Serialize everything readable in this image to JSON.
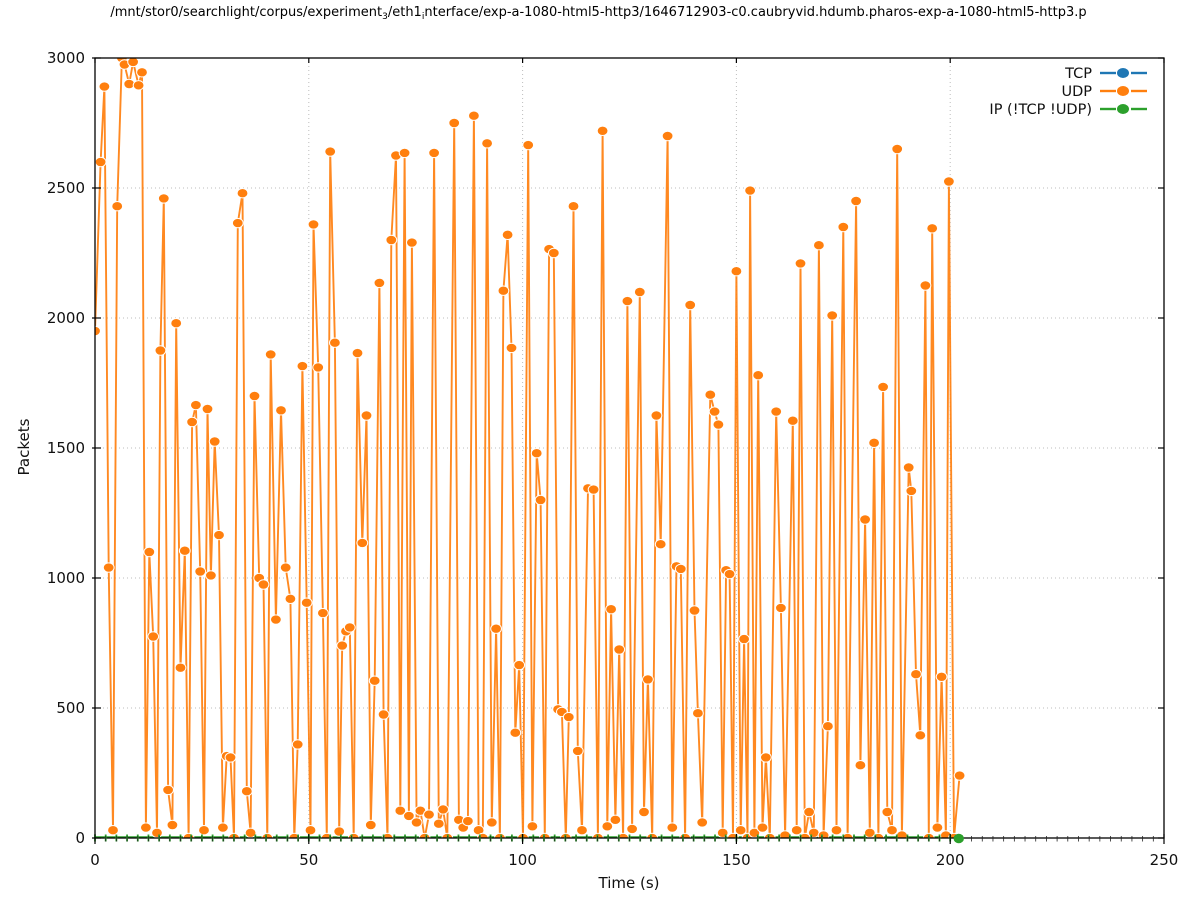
{
  "title": {
    "parts": [
      {
        "text": "/mnt/stor0/searchlight/corpus/experiment"
      },
      {
        "sub": "3"
      },
      {
        "text": "/eth1"
      },
      {
        "sub": "i"
      },
      {
        "text": "nterface/exp-a-1080-html5-http3/1646712903-c0.caubryvid.hdumb.pharos-exp-a-1080-html5-http3.p"
      }
    ]
  },
  "chart_data": {
    "type": "line",
    "title": "",
    "xlabel": "Time (s)",
    "ylabel": "Packets",
    "xlim": [
      0,
      250
    ],
    "ylim": [
      0,
      3000
    ],
    "x_ticks": [
      0,
      50,
      100,
      150,
      200,
      250
    ],
    "y_ticks": [
      0,
      500,
      1000,
      1500,
      2000,
      2500,
      3000
    ],
    "x_minor_tick_step": 2.5,
    "grid": "dotted",
    "grid_color": "#bdbdbd",
    "axis_color": "#000000",
    "legend_position": "top-right-inside",
    "legend": [
      {
        "label": "TCP",
        "color": "#1f77b4"
      },
      {
        "label": "UDP",
        "color": "#ff7f0e"
      },
      {
        "label": "IP (!TCP  !UDP)",
        "color": "#2ca02c"
      }
    ],
    "series": [
      {
        "name": "TCP",
        "color": "#1f77b4",
        "points": [],
        "note": "no visible TCP samples in plot area"
      },
      {
        "name": "UDP",
        "color": "#ff7f0e",
        "marker": "filled-circle-white-edge",
        "points": [
          [
            0,
            1950
          ],
          [
            1.3,
            2600
          ],
          [
            2.2,
            2890
          ],
          [
            3.2,
            1040
          ],
          [
            4.2,
            30
          ],
          [
            5.2,
            2430
          ],
          [
            6.3,
            3000
          ],
          [
            6.9,
            2975
          ],
          [
            8,
            2900
          ],
          [
            8.9,
            2985
          ],
          [
            10.2,
            2895
          ],
          [
            11,
            2945
          ],
          [
            11.9,
            40
          ],
          [
            12.7,
            1100
          ],
          [
            13.6,
            775
          ],
          [
            14.5,
            20
          ],
          [
            15.3,
            1875
          ],
          [
            16.1,
            2460
          ],
          [
            17.1,
            185
          ],
          [
            18.1,
            50
          ],
          [
            19,
            1980
          ],
          [
            20,
            655
          ],
          [
            21,
            1105
          ],
          [
            21.9,
            0
          ],
          [
            22.7,
            1600
          ],
          [
            23.6,
            1665
          ],
          [
            24.6,
            1025
          ],
          [
            25.5,
            30
          ],
          [
            26.3,
            1650
          ],
          [
            27.1,
            1010
          ],
          [
            28,
            1525
          ],
          [
            29,
            1165
          ],
          [
            29.9,
            40
          ],
          [
            30.8,
            315
          ],
          [
            31.7,
            310
          ],
          [
            32.5,
            0
          ],
          [
            33.4,
            2365
          ],
          [
            34.5,
            2480
          ],
          [
            35.5,
            180
          ],
          [
            36.4,
            20
          ],
          [
            37.3,
            1700
          ],
          [
            38.4,
            1000
          ],
          [
            39.4,
            975
          ],
          [
            40.3,
            0
          ],
          [
            41.1,
            1860
          ],
          [
            42.3,
            840
          ],
          [
            43.5,
            1645
          ],
          [
            44.6,
            1040
          ],
          [
            45.7,
            920
          ],
          [
            46.6,
            0
          ],
          [
            47.4,
            360
          ],
          [
            48.5,
            1815
          ],
          [
            49.5,
            905
          ],
          [
            50.4,
            30
          ],
          [
            51.1,
            2360
          ],
          [
            52.2,
            1810
          ],
          [
            53.3,
            865
          ],
          [
            54.2,
            0
          ],
          [
            55,
            2640
          ],
          [
            56.1,
            1905
          ],
          [
            57.1,
            25
          ],
          [
            57.8,
            740
          ],
          [
            58.7,
            795
          ],
          [
            59.6,
            810
          ],
          [
            60.5,
            0
          ],
          [
            61.4,
            1865
          ],
          [
            62.5,
            1135
          ],
          [
            63.5,
            1625
          ],
          [
            64.5,
            50
          ],
          [
            65.4,
            605
          ],
          [
            66.5,
            2135
          ],
          [
            67.5,
            475
          ],
          [
            68.4,
            0
          ],
          [
            69.3,
            2300
          ],
          [
            70.4,
            2625
          ],
          [
            71.4,
            105
          ],
          [
            72.4,
            2635
          ],
          [
            73.4,
            85
          ],
          [
            74.1,
            2290
          ],
          [
            75.2,
            60
          ],
          [
            76.1,
            105
          ],
          [
            77.1,
            0
          ],
          [
            78.1,
            90
          ],
          [
            79.3,
            2635
          ],
          [
            80.4,
            55
          ],
          [
            81.4,
            110
          ],
          [
            82.4,
            0
          ],
          [
            84,
            2750
          ],
          [
            85.1,
            70
          ],
          [
            86.1,
            40
          ],
          [
            87.2,
            65
          ],
          [
            88.6,
            2778
          ],
          [
            89.7,
            30
          ],
          [
            90.7,
            0
          ],
          [
            91.7,
            2672
          ],
          [
            92.8,
            60
          ],
          [
            93.8,
            805
          ],
          [
            94.7,
            0
          ],
          [
            95.5,
            2105
          ],
          [
            96.5,
            2320
          ],
          [
            97.4,
            1885
          ],
          [
            98.3,
            405
          ],
          [
            99.2,
            665
          ],
          [
            100.1,
            0
          ],
          [
            101.3,
            2665
          ],
          [
            102.3,
            45
          ],
          [
            103.3,
            1480
          ],
          [
            104.2,
            1300
          ],
          [
            105.2,
            0
          ],
          [
            106.2,
            2265
          ],
          [
            107.3,
            2250
          ],
          [
            108.3,
            495
          ],
          [
            109.2,
            485
          ],
          [
            110.1,
            0
          ],
          [
            110.8,
            465
          ],
          [
            111.9,
            2430
          ],
          [
            112.9,
            335
          ],
          [
            113.9,
            30
          ],
          [
            115.3,
            1345
          ],
          [
            116.6,
            1340
          ],
          [
            117.6,
            0
          ],
          [
            118.7,
            2720
          ],
          [
            119.8,
            45
          ],
          [
            120.7,
            880
          ],
          [
            121.7,
            70
          ],
          [
            122.6,
            725
          ],
          [
            123.5,
            0
          ],
          [
            124.5,
            2065
          ],
          [
            125.6,
            35
          ],
          [
            127.4,
            2100
          ],
          [
            128.4,
            100
          ],
          [
            129.3,
            610
          ],
          [
            130.3,
            0
          ],
          [
            131.3,
            1625
          ],
          [
            132.3,
            1130
          ],
          [
            133.9,
            2700
          ],
          [
            135,
            40
          ],
          [
            136,
            1045
          ],
          [
            137,
            1035
          ],
          [
            138,
            0
          ],
          [
            139.2,
            2050
          ],
          [
            140.2,
            875
          ],
          [
            141,
            480
          ],
          [
            142,
            60
          ],
          [
            143.9,
            1705
          ],
          [
            144.9,
            1640
          ],
          [
            145.8,
            1590
          ],
          [
            146.8,
            20
          ],
          [
            147.6,
            1030
          ],
          [
            148.4,
            1015
          ],
          [
            149.2,
            0
          ],
          [
            150,
            2180
          ],
          [
            151,
            30
          ],
          [
            151.8,
            765
          ],
          [
            152.6,
            0
          ],
          [
            153.2,
            2490
          ],
          [
            154.2,
            20
          ],
          [
            155.1,
            1780
          ],
          [
            156.1,
            40
          ],
          [
            156.9,
            310
          ],
          [
            157.8,
            0
          ],
          [
            159.3,
            1640
          ],
          [
            160.4,
            885
          ],
          [
            161.4,
            10
          ],
          [
            163.2,
            1605
          ],
          [
            164.1,
            30
          ],
          [
            165,
            2210
          ],
          [
            166,
            0
          ],
          [
            167,
            100
          ],
          [
            168.1,
            20
          ],
          [
            169.3,
            2280
          ],
          [
            170.4,
            10
          ],
          [
            171.4,
            430
          ],
          [
            172.4,
            2010
          ],
          [
            173.4,
            30
          ],
          [
            175,
            2350
          ],
          [
            176,
            0
          ],
          [
            178,
            2450
          ],
          [
            179,
            280
          ],
          [
            180.1,
            1225
          ],
          [
            181.2,
            20
          ],
          [
            182.2,
            1520
          ],
          [
            183.2,
            0
          ],
          [
            184.3,
            1735
          ],
          [
            185.3,
            100
          ],
          [
            186.4,
            30
          ],
          [
            187.6,
            2650
          ],
          [
            188.7,
            10
          ],
          [
            190.3,
            1425
          ],
          [
            190.9,
            1335
          ],
          [
            192,
            630
          ],
          [
            193,
            395
          ],
          [
            194.2,
            2125
          ],
          [
            195,
            0
          ],
          [
            195.8,
            2345
          ],
          [
            197,
            40
          ],
          [
            198,
            620
          ],
          [
            199,
            10
          ],
          [
            199.7,
            2525
          ],
          [
            200.9,
            0
          ],
          [
            202.2,
            240
          ]
        ]
      },
      {
        "name": "IP (!TCP  !UDP)",
        "color": "#2ca02c",
        "marker": "filled-circle",
        "constant_value": 0,
        "t_range": [
          0,
          202
        ],
        "sample_step": 2.5,
        "end_marker_t": 202,
        "note": "constant zero along x-axis; visible as small green dashes on the axis and a dot at t=202"
      }
    ]
  }
}
